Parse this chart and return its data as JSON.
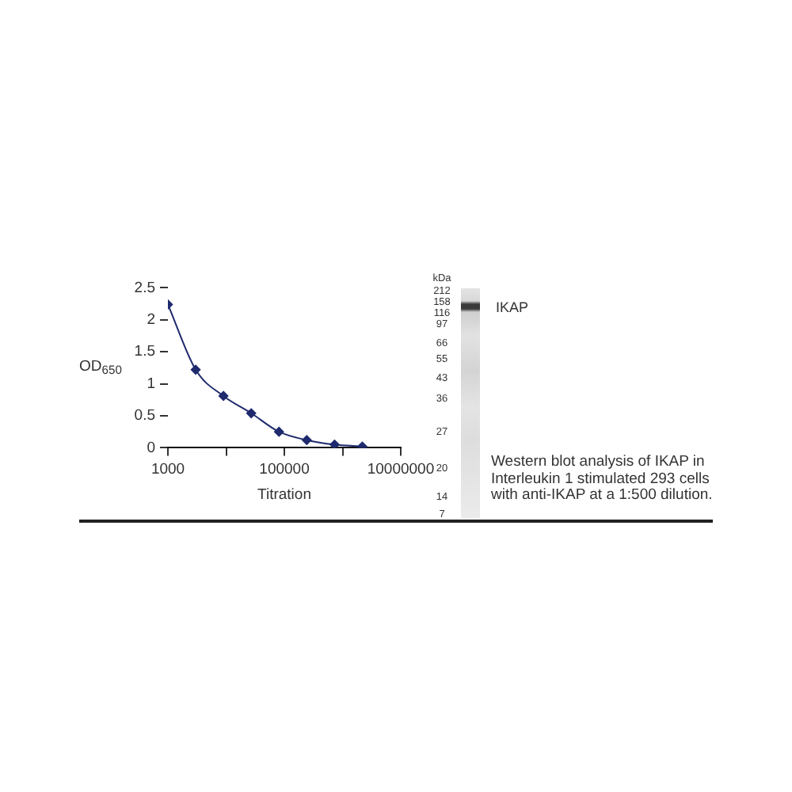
{
  "chart_data": [
    {
      "type": "line",
      "xlabel": "Titration",
      "ylabel": "OD$_{650}$",
      "x": [
        1000,
        3000,
        9000,
        27000,
        81000,
        243000,
        729000,
        2187000
      ],
      "series": [
        {
          "color": "#1f2a6e",
          "values": [
            2.24,
            1.22,
            0.81,
            0.54,
            0.25,
            0.12,
            0.05,
            0.02
          ]
        }
      ],
      "log": "x",
      "xlim": [
        1000,
        10000000
      ],
      "xticks": [
        1000,
        {
          "value": 10000,
          "label": null
        },
        100000,
        {
          "value": 1000000,
          "label": null
        },
        10000000
      ],
      "ylim": [
        0,
        2.5
      ],
      "yticks": [
        0,
        0.5,
        1,
        1.5,
        2,
        2.5
      ],
      "marker": "diamond"
    },
    {
      "type": "other",
      "ylabel": "kDa",
      "categories": [
        "212",
        "158",
        "116",
        "97",
        "66",
        "55",
        "43",
        "36",
        "27",
        "20",
        "14",
        "7"
      ],
      "annotations": [
        "IKAP",
        "Western blot analysis of IKAP in Interleukin 1 stimulated 293 cells with anti-IKAP at a 1:500 dilution."
      ]
    }
  ]
}
